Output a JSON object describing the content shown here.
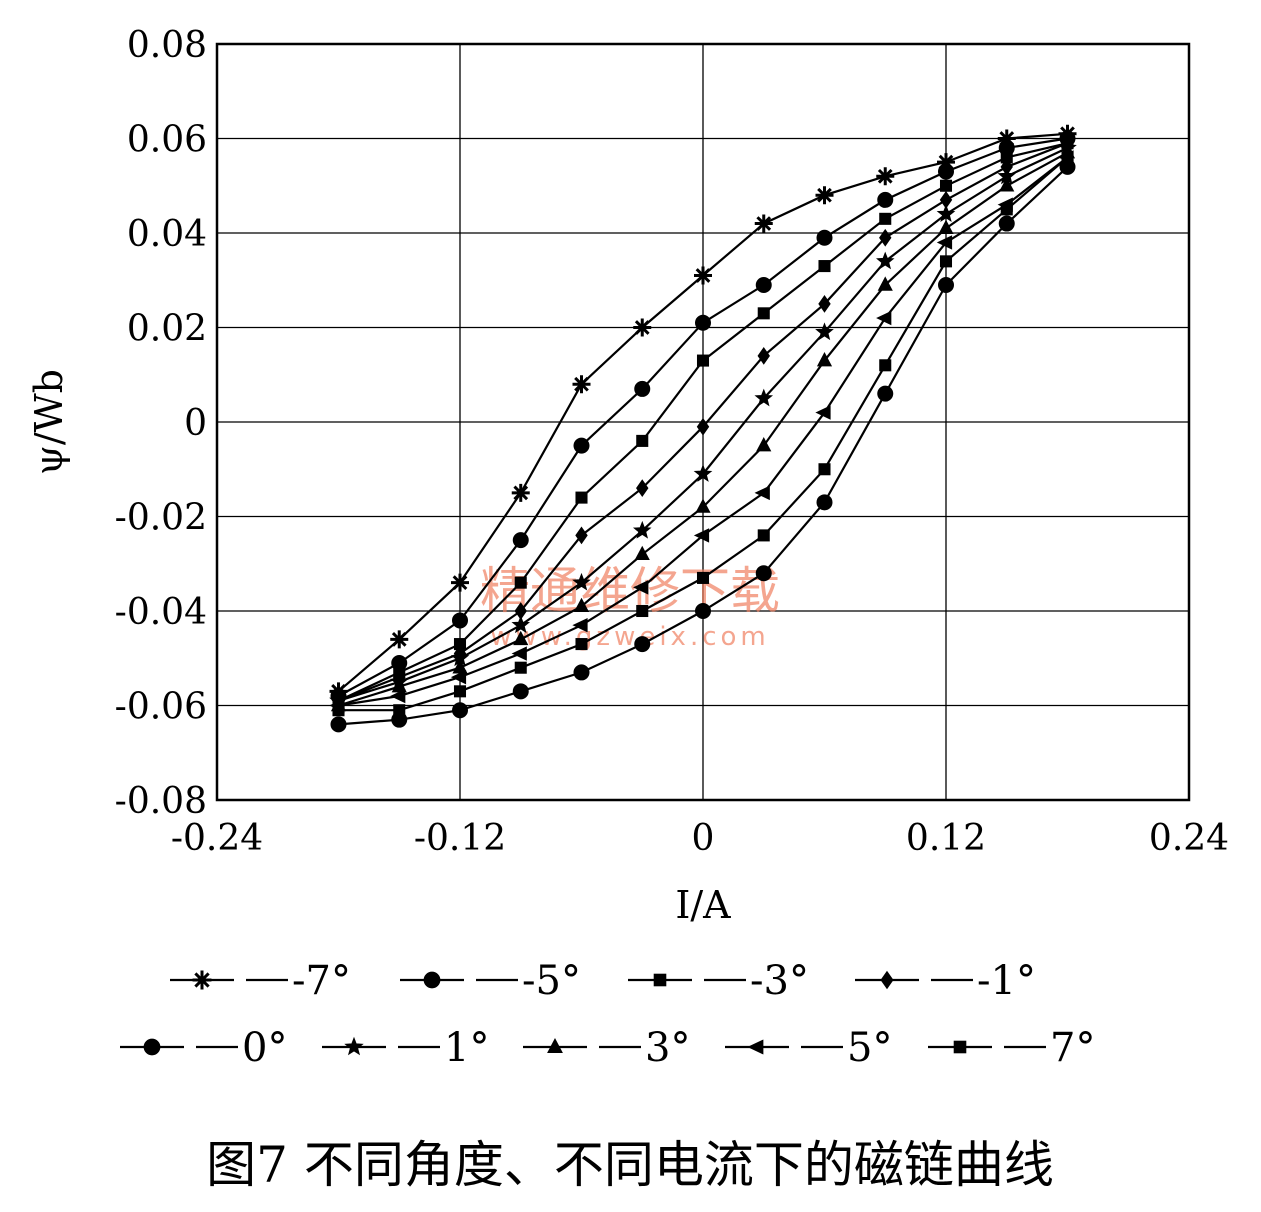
{
  "chart_data": {
    "type": "line",
    "xlabel": "I/A",
    "ylabel": "ψ/Wb",
    "xlim": [
      -0.24,
      0.24
    ],
    "ylim": [
      -0.08,
      0.08
    ],
    "x_ticks": [
      "-0.24",
      "-0.12",
      "0",
      "0.12",
      "0.24"
    ],
    "y_ticks": [
      "0.08",
      "0.06",
      "0.04",
      "0.02",
      "0",
      "-0.02",
      "-0.04",
      "-0.06",
      "-0.08"
    ],
    "grid": true,
    "legend_position": "bottom",
    "caption": "图7 不同角度、不同电流下的磁链曲线",
    "watermark": [
      "精通维修下载",
      "www.gzweix.com"
    ],
    "series": [
      {
        "name": "-7°",
        "marker": "cross",
        "x": [
          -0.18,
          -0.15,
          -0.12,
          -0.09,
          -0.06,
          -0.03,
          0,
          0.03,
          0.06,
          0.09,
          0.12,
          0.15,
          0.18
        ],
        "y": [
          -0.057,
          -0.046,
          -0.034,
          -0.015,
          0.008,
          0.02,
          0.031,
          0.042,
          0.048,
          0.052,
          0.055,
          0.06,
          0.061
        ]
      },
      {
        "name": "-5°",
        "marker": "circle",
        "x": [
          -0.18,
          -0.15,
          -0.12,
          -0.09,
          -0.06,
          -0.03,
          0,
          0.03,
          0.06,
          0.09,
          0.12,
          0.15,
          0.18
        ],
        "y": [
          -0.058,
          -0.051,
          -0.042,
          -0.025,
          -0.005,
          0.007,
          0.021,
          0.029,
          0.039,
          0.047,
          0.053,
          0.058,
          0.06
        ]
      },
      {
        "name": "-3°",
        "marker": "square",
        "x": [
          -0.18,
          -0.15,
          -0.12,
          -0.09,
          -0.06,
          -0.03,
          0,
          0.03,
          0.06,
          0.09,
          0.12,
          0.15,
          0.18
        ],
        "y": [
          -0.059,
          -0.053,
          -0.047,
          -0.034,
          -0.016,
          -0.004,
          0.013,
          0.023,
          0.033,
          0.043,
          0.05,
          0.056,
          0.059
        ]
      },
      {
        "name": "-1°",
        "marker": "diamond",
        "x": [
          -0.18,
          -0.15,
          -0.12,
          -0.09,
          -0.06,
          -0.03,
          0,
          0.03,
          0.06,
          0.09,
          0.12,
          0.15,
          0.18
        ],
        "y": [
          -0.059,
          -0.054,
          -0.049,
          -0.04,
          -0.024,
          -0.014,
          -0.001,
          0.014,
          0.025,
          0.039,
          0.047,
          0.054,
          0.059
        ]
      },
      {
        "name": "0°",
        "marker": "circle",
        "x": [
          -0.18,
          -0.15,
          -0.12,
          -0.09,
          -0.06,
          -0.03,
          0,
          0.03,
          0.06,
          0.09,
          0.12,
          0.15,
          0.18
        ],
        "y": [
          -0.064,
          -0.063,
          -0.061,
          -0.057,
          -0.053,
          -0.047,
          -0.04,
          -0.032,
          -0.017,
          0.006,
          0.029,
          0.042,
          0.054
        ]
      },
      {
        "name": "1°",
        "marker": "star",
        "x": [
          -0.18,
          -0.15,
          -0.12,
          -0.09,
          -0.06,
          -0.03,
          0,
          0.03,
          0.06,
          0.09,
          0.12,
          0.15,
          0.18
        ],
        "y": [
          -0.059,
          -0.055,
          -0.05,
          -0.043,
          -0.034,
          -0.023,
          -0.011,
          0.005,
          0.019,
          0.034,
          0.044,
          0.052,
          0.058
        ]
      },
      {
        "name": "3°",
        "marker": "triangle",
        "x": [
          -0.18,
          -0.15,
          -0.12,
          -0.09,
          -0.06,
          -0.03,
          0,
          0.03,
          0.06,
          0.09,
          0.12,
          0.15,
          0.18
        ],
        "y": [
          -0.06,
          -0.056,
          -0.052,
          -0.046,
          -0.039,
          -0.028,
          -0.018,
          -0.005,
          0.013,
          0.029,
          0.041,
          0.05,
          0.057
        ]
      },
      {
        "name": "5°",
        "marker": "triangle-left",
        "x": [
          -0.18,
          -0.15,
          -0.12,
          -0.09,
          -0.06,
          -0.03,
          0,
          0.03,
          0.06,
          0.09,
          0.12,
          0.15,
          0.18
        ],
        "y": [
          -0.06,
          -0.058,
          -0.054,
          -0.049,
          -0.043,
          -0.035,
          -0.024,
          -0.015,
          0.002,
          0.022,
          0.038,
          0.046,
          0.056
        ]
      },
      {
        "name": "7°",
        "marker": "square",
        "x": [
          -0.18,
          -0.15,
          -0.12,
          -0.09,
          -0.06,
          -0.03,
          0,
          0.03,
          0.06,
          0.09,
          0.12,
          0.15,
          0.18
        ],
        "y": [
          -0.061,
          -0.061,
          -0.057,
          -0.052,
          -0.047,
          -0.04,
          -0.033,
          -0.024,
          -0.01,
          0.012,
          0.034,
          0.045,
          0.056
        ]
      }
    ]
  }
}
